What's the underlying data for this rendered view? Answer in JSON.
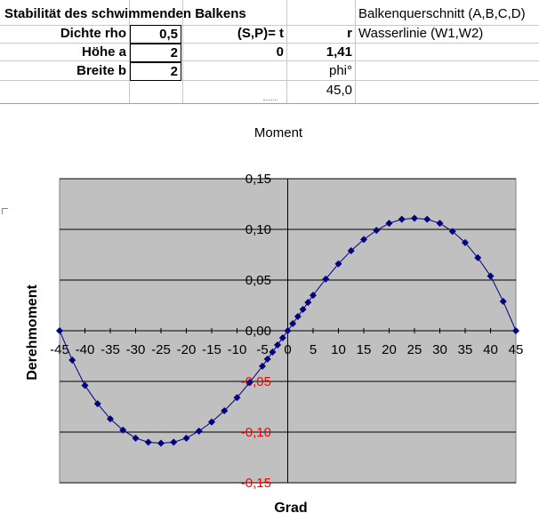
{
  "sheet": {
    "title": "Stabilität des schwimmenden Balkens",
    "right_header": "Balkenquerschnitt (A,B,C,D)",
    "rows": {
      "dichte_label": "Dichte rho",
      "dichte_value": "0,5",
      "sp_label": "(S,P)= t",
      "r_label": "r",
      "waterline": "Wasserlinie (W1,W2)",
      "hoehe_label": "Höhe  a",
      "hoehe_value": "2",
      "t_value": "0",
      "r_value": "1,41",
      "breite_label": "Breite  b",
      "breite_value": "2",
      "phi_label": "phi°",
      "phi_value": "45,0"
    }
  },
  "chart_data": {
    "type": "scatter",
    "title": "Moment",
    "xlabel": "Grad",
    "ylabel": "Derehmoment",
    "xlim": [
      -45,
      45
    ],
    "ylim": [
      -0.15,
      0.15
    ],
    "x_ticks": [
      "-45",
      "-40",
      "-35",
      "-30",
      "-25",
      "-20",
      "-15",
      "-10",
      "-5",
      "0",
      "5",
      "10",
      "15",
      "20",
      "25",
      "30",
      "35",
      "40",
      "45"
    ],
    "y_ticks": [
      "0,15",
      "0,10",
      "0,05",
      "0,00",
      "-0,05",
      "-0,10",
      "-0,15"
    ],
    "grid": true,
    "plot_background": "#c0c0c0",
    "series_color": "#000080",
    "negative_tick_color": "#ff0000",
    "series": [
      {
        "x": [
          -45,
          -42.5,
          -40,
          -37.5,
          -35,
          -32.5,
          -30,
          -27.5,
          -25,
          -22.5,
          -20,
          -17.5,
          -15,
          -12.5,
          -10,
          -7.5,
          -5,
          -4,
          -3,
          -2,
          -1,
          0,
          1,
          2,
          3,
          4,
          5,
          7.5,
          10,
          12.5,
          15,
          17.5,
          20,
          22.5,
          25,
          27.5,
          30,
          32.5,
          35,
          37.5,
          40,
          42.5,
          45
        ],
        "y": [
          0,
          -0.029,
          -0.054,
          -0.072,
          -0.087,
          -0.098,
          -0.106,
          -0.11,
          -0.111,
          -0.11,
          -0.106,
          -0.099,
          -0.09,
          -0.079,
          -0.066,
          -0.051,
          -0.035,
          -0.028,
          -0.021,
          -0.014,
          -0.007,
          0,
          0.007,
          0.014,
          0.021,
          0.028,
          0.035,
          0.051,
          0.066,
          0.079,
          0.09,
          0.099,
          0.106,
          0.11,
          0.111,
          0.11,
          0.106,
          0.098,
          0.087,
          0.072,
          0.054,
          0.029,
          0
        ]
      }
    ]
  }
}
